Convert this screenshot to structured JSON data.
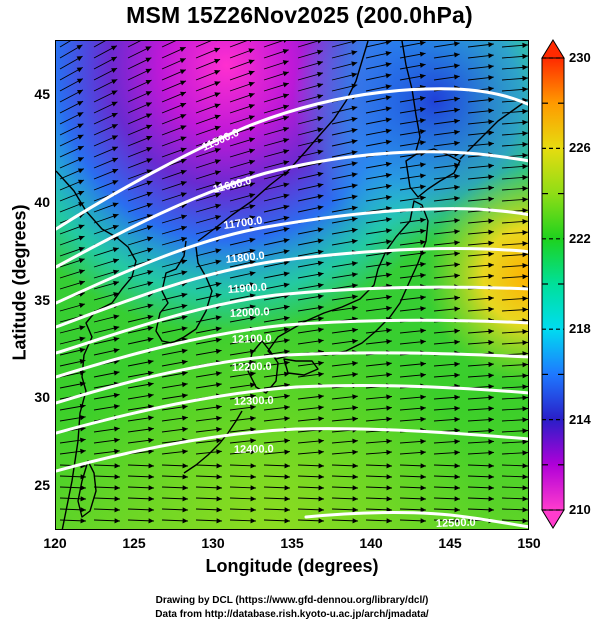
{
  "title": "MSM 15Z26Nov2025 (200.0hPa)",
  "axes": {
    "xlabel": "Longitude (degrees)",
    "ylabel": "Latitude  (degrees)",
    "xlim": [
      120,
      150
    ],
    "ylim": [
      22.4,
      47.6
    ],
    "xticks": [
      "120",
      "125",
      "130",
      "135",
      "140",
      "145",
      "150"
    ],
    "yticks": [
      "25",
      "30",
      "35",
      "40",
      "45"
    ]
  },
  "colorbar": {
    "range": [
      210,
      230
    ],
    "tick_labels": [
      "230",
      "226",
      "222",
      "218",
      "214",
      "210"
    ],
    "colors": {
      "210": "#ff3ccd",
      "212": "#b000d8",
      "214": "#2a1ec8",
      "216": "#1e78ff",
      "218": "#00dcf0",
      "220": "#00e09a",
      "222": "#1ed21e",
      "224": "#8fdd16",
      "226": "#e6dc10",
      "228": "#ff9a00",
      "230": "#ff2a00"
    }
  },
  "contours": [
    {
      "label": "11500.0"
    },
    {
      "label": "11600.0"
    },
    {
      "label": "11700.0"
    },
    {
      "label": "11800.0"
    },
    {
      "label": "11900.0"
    },
    {
      "label": "12000.0"
    },
    {
      "label": "12100.0"
    },
    {
      "label": "12200.0"
    },
    {
      "label": "12300.0"
    },
    {
      "label": "12400.0"
    },
    {
      "label": "12500.0"
    }
  ],
  "credits": {
    "line1": "Drawing by DCL (https://www.gfd-dennou.org/library/dcl/)",
    "line2": "Data from http://database.rish.kyoto-u.ac.jp/arch/jmadata/"
  },
  "map_elements": {
    "field": "temperature (K)",
    "vectors": "wind arrows",
    "coastlines": "East Asia / Japan"
  }
}
